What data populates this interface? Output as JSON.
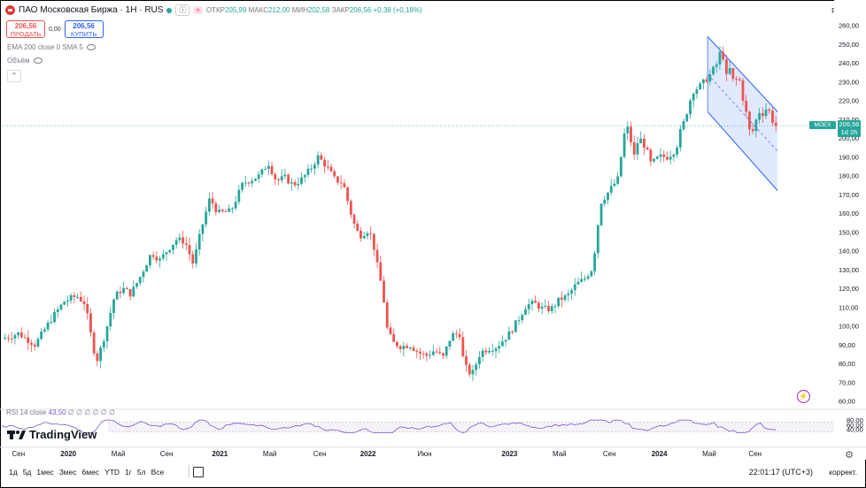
{
  "header": {
    "symbol": "ПАО Московская Биржа · 1Н · RUS",
    "open_label": "ОТКР",
    "open": "205,99",
    "high_label": "МАКС",
    "high": "212,00",
    "low_label": "МИН",
    "low": "202,58",
    "close_label": "ЗАКР",
    "close": "206,56",
    "change": "+0,38 (+0,18%)",
    "currency": "RUB"
  },
  "trade": {
    "sell_price": "206,56",
    "sell_label": "ПРОДАТЬ",
    "spread": "0,00",
    "buy_price": "206,56",
    "buy_label": "КУПИТЬ"
  },
  "indicators": {
    "ema": "EMA 200 close 0 SMA 5",
    "volume": "Объём",
    "rsi": "RSI 14 close",
    "rsi_value": "43,50",
    "rsi_extra": "∅ ∅ ∅ ∅ ∅ ∅"
  },
  "price_tag": {
    "symbol": "MOEX",
    "price": "206,56",
    "countdown": "1d 2h"
  },
  "brand": "TradingView",
  "bottom_bar": {
    "timeframes": [
      "1д",
      "5д",
      "1мес",
      "3мес",
      "6мес",
      "YTD",
      "1г",
      "5л",
      "Все"
    ],
    "time": "22:01:17 (UTC+3)",
    "adjust": "коррект."
  },
  "chart_data": {
    "type": "candlestick",
    "colors": {
      "up": "#26a69a",
      "down": "#ef5350",
      "channel": "#2962ff",
      "rsi": "#7e57c2"
    },
    "y_axis": {
      "ticks": [
        60,
        70,
        80,
        90,
        100,
        110,
        120,
        130,
        140,
        150,
        160,
        170,
        180,
        190,
        200,
        210,
        220,
        230,
        240,
        250,
        260
      ],
      "range": [
        57,
        265
      ]
    },
    "x_axis": {
      "ticks": [
        {
          "label": "Сен",
          "t": 0.02
        },
        {
          "label": "2020",
          "t": 0.08
        },
        {
          "label": "Май",
          "t": 0.14
        },
        {
          "label": "Сен",
          "t": 0.198
        },
        {
          "label": "2021",
          "t": 0.262
        },
        {
          "label": "Май",
          "t": 0.322
        },
        {
          "label": "Сен",
          "t": 0.382
        },
        {
          "label": "2022",
          "t": 0.44
        },
        {
          "label": "Июн",
          "t": 0.508
        },
        {
          "label": "2023",
          "t": 0.61
        },
        {
          "label": "Май",
          "t": 0.67
        },
        {
          "label": "Сен",
          "t": 0.73
        },
        {
          "label": "2024",
          "t": 0.79
        },
        {
          "label": "Май",
          "t": 0.85
        },
        {
          "label": "Сен",
          "t": 0.905
        }
      ]
    },
    "path": [
      [
        0.0,
        93
      ],
      [
        0.02,
        96
      ],
      [
        0.04,
        90
      ],
      [
        0.06,
        104
      ],
      [
        0.075,
        113
      ],
      [
        0.09,
        116
      ],
      [
        0.1,
        112
      ],
      [
        0.11,
        88
      ],
      [
        0.115,
        82
      ],
      [
        0.125,
        97
      ],
      [
        0.135,
        115
      ],
      [
        0.145,
        120
      ],
      [
        0.155,
        117
      ],
      [
        0.165,
        125
      ],
      [
        0.18,
        139
      ],
      [
        0.19,
        135
      ],
      [
        0.2,
        141
      ],
      [
        0.21,
        146
      ],
      [
        0.22,
        145
      ],
      [
        0.23,
        133
      ],
      [
        0.24,
        152
      ],
      [
        0.25,
        168
      ],
      [
        0.26,
        160
      ],
      [
        0.275,
        161
      ],
      [
        0.29,
        176
      ],
      [
        0.31,
        180
      ],
      [
        0.32,
        187
      ],
      [
        0.33,
        177
      ],
      [
        0.34,
        179
      ],
      [
        0.35,
        175
      ],
      [
        0.36,
        178
      ],
      [
        0.37,
        183
      ],
      [
        0.38,
        190
      ],
      [
        0.39,
        185
      ],
      [
        0.4,
        178
      ],
      [
        0.41,
        176
      ],
      [
        0.42,
        159
      ],
      [
        0.425,
        152
      ],
      [
        0.43,
        148
      ],
      [
        0.44,
        151
      ],
      [
        0.445,
        147
      ],
      [
        0.452,
        130
      ],
      [
        0.458,
        118
      ],
      [
        0.462,
        100
      ],
      [
        0.465,
        96
      ],
      [
        0.47,
        91
      ],
      [
        0.48,
        89
      ],
      [
        0.49,
        90
      ],
      [
        0.5,
        86
      ],
      [
        0.51,
        84
      ],
      [
        0.52,
        87
      ],
      [
        0.53,
        83
      ],
      [
        0.54,
        95
      ],
      [
        0.55,
        96
      ],
      [
        0.555,
        80
      ],
      [
        0.56,
        76
      ],
      [
        0.565,
        74
      ],
      [
        0.575,
        86
      ],
      [
        0.585,
        88
      ],
      [
        0.595,
        89
      ],
      [
        0.61,
        96
      ],
      [
        0.62,
        103
      ],
      [
        0.63,
        111
      ],
      [
        0.64,
        112
      ],
      [
        0.65,
        109
      ],
      [
        0.66,
        109
      ],
      [
        0.67,
        114
      ],
      [
        0.68,
        116
      ],
      [
        0.69,
        122
      ],
      [
        0.7,
        125
      ],
      [
        0.71,
        131
      ],
      [
        0.715,
        150
      ],
      [
        0.72,
        166
      ],
      [
        0.73,
        172
      ],
      [
        0.74,
        178
      ],
      [
        0.745,
        193
      ],
      [
        0.75,
        208
      ],
      [
        0.755,
        200
      ],
      [
        0.76,
        190
      ],
      [
        0.765,
        200
      ],
      [
        0.77,
        198
      ],
      [
        0.775,
        193
      ],
      [
        0.78,
        186
      ],
      [
        0.79,
        190
      ],
      [
        0.8,
        190
      ],
      [
        0.81,
        194
      ],
      [
        0.815,
        203
      ],
      [
        0.82,
        209
      ],
      [
        0.83,
        225
      ],
      [
        0.84,
        228
      ],
      [
        0.85,
        233
      ],
      [
        0.86,
        240
      ],
      [
        0.865,
        249
      ],
      [
        0.87,
        232
      ],
      [
        0.875,
        237
      ],
      [
        0.88,
        228
      ],
      [
        0.885,
        234
      ],
      [
        0.89,
        222
      ],
      [
        0.895,
        212
      ],
      [
        0.9,
        200
      ],
      [
        0.905,
        208
      ],
      [
        0.91,
        214
      ],
      [
        0.915,
        213
      ],
      [
        0.92,
        217
      ],
      [
        0.925,
        210
      ],
      [
        0.93,
        206.56
      ]
    ],
    "channel": {
      "upper": [
        [
          249,
          254
        ],
        [
          0.932,
          214
        ]
      ],
      "lower": [
        [
          249,
          214
        ],
        [
          0.932,
          172
        ]
      ]
    },
    "rsi": {
      "value": 43.5,
      "levels": [
        30,
        70
      ]
    }
  }
}
